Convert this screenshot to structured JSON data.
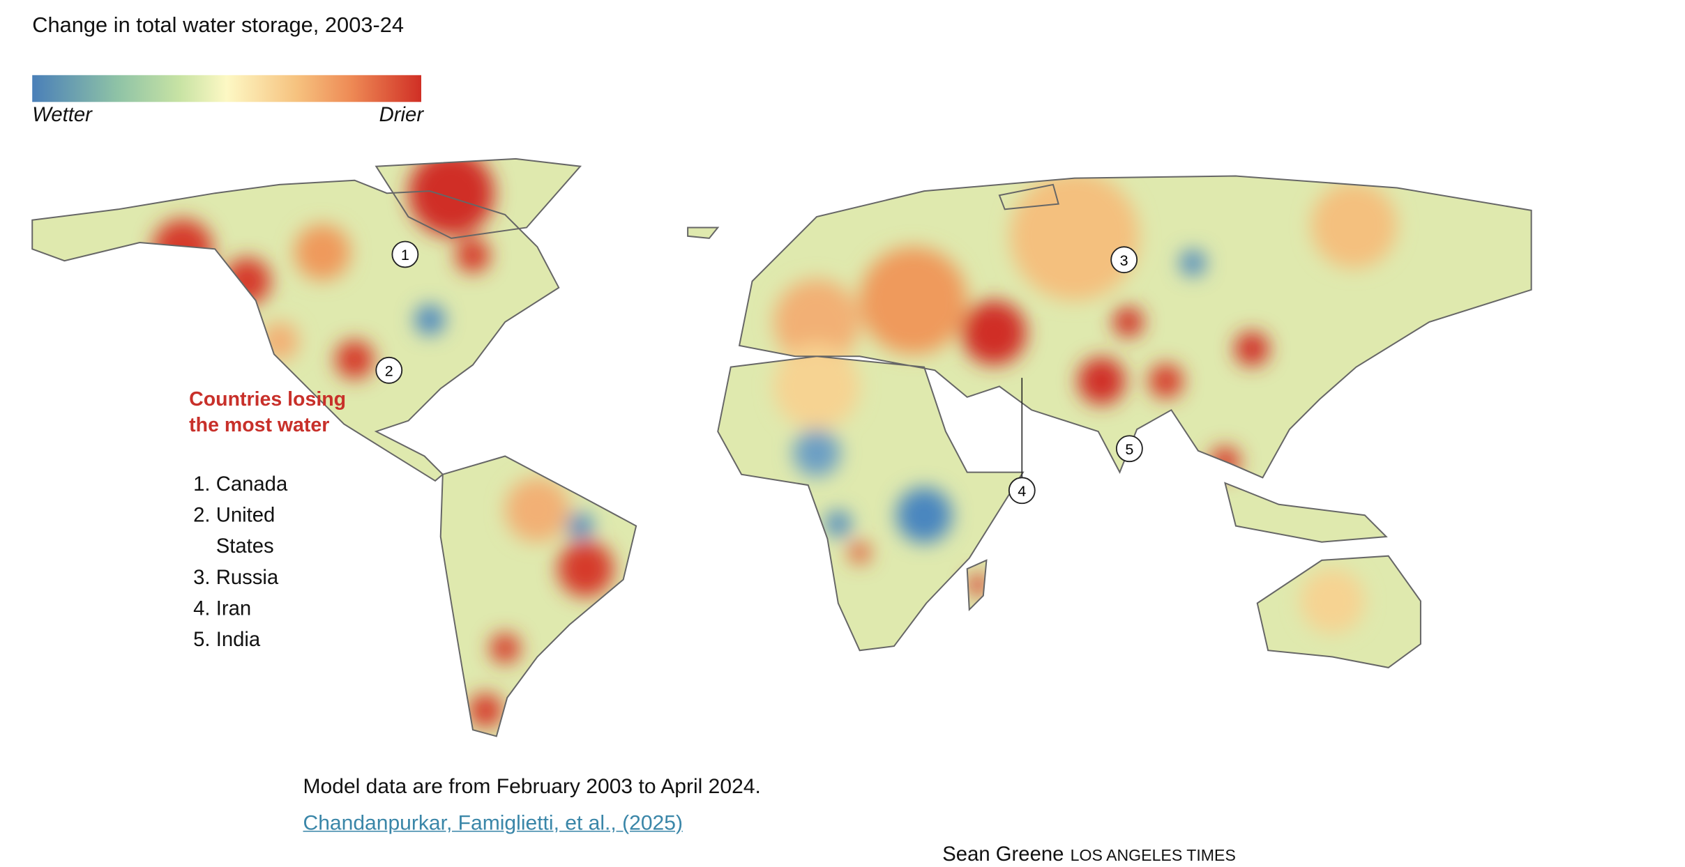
{
  "legend": {
    "title": "Change in total water storage, 2003-24",
    "low": "Wetter",
    "high": "Drier"
  },
  "countries": {
    "heading": "Countries losing the most water",
    "items": [
      "Canada",
      "United States",
      "Russia",
      "Iran",
      "India"
    ]
  },
  "markers": [
    1,
    2,
    3,
    4,
    5
  ],
  "notes": {
    "model": "Model data are from February 2003 to April 2024.",
    "source": "Chandanpurkar, Famiglietti, et al., (2025)",
    "credit": "Sean Greene",
    "publisher": "LOS ANGELES TIMES"
  }
}
